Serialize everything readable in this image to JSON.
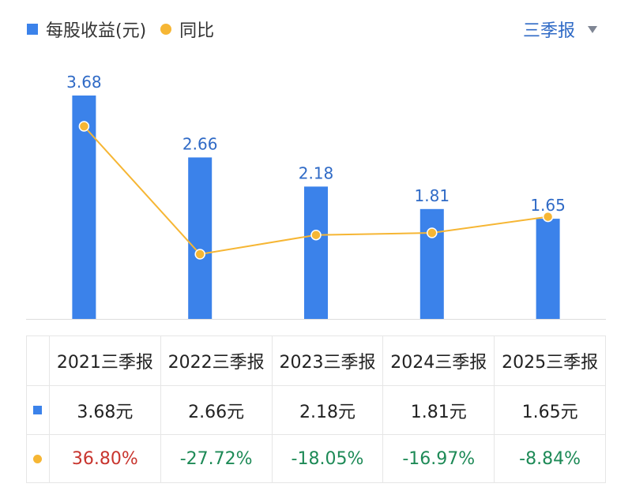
{
  "legend": {
    "bar_label": "每股收益(元)",
    "line_label": "同比"
  },
  "period_selector": {
    "label": "三季报"
  },
  "colors": {
    "bar": "#3b82ea",
    "line": "#f6b634",
    "bar_label": "#2f6ac6",
    "positive": "#c8352e",
    "negative": "#1e8a57"
  },
  "chart_data": {
    "type": "bar",
    "categories": [
      "2021三季报",
      "2022三季报",
      "2023三季报",
      "2024三季报",
      "2025三季报"
    ],
    "series": [
      {
        "name": "每股收益(元)",
        "type": "bar",
        "values": [
          3.68,
          2.66,
          2.18,
          1.81,
          1.65
        ]
      },
      {
        "name": "同比",
        "type": "line",
        "values": [
          36.8,
          -27.72,
          -18.05,
          -16.97,
          -8.84
        ]
      }
    ],
    "ylim": [
      0,
      3.68
    ],
    "legend": "top-left"
  },
  "table": {
    "headers": [
      "2021三季报",
      "2022三季报",
      "2023三季报",
      "2024三季报",
      "2025三季报"
    ],
    "eps_row": [
      "3.68元",
      "2.66元",
      "2.18元",
      "1.81元",
      "1.65元"
    ],
    "yoy_row": [
      "36.80%",
      "-27.72%",
      "-18.05%",
      "-16.97%",
      "-8.84%"
    ]
  }
}
